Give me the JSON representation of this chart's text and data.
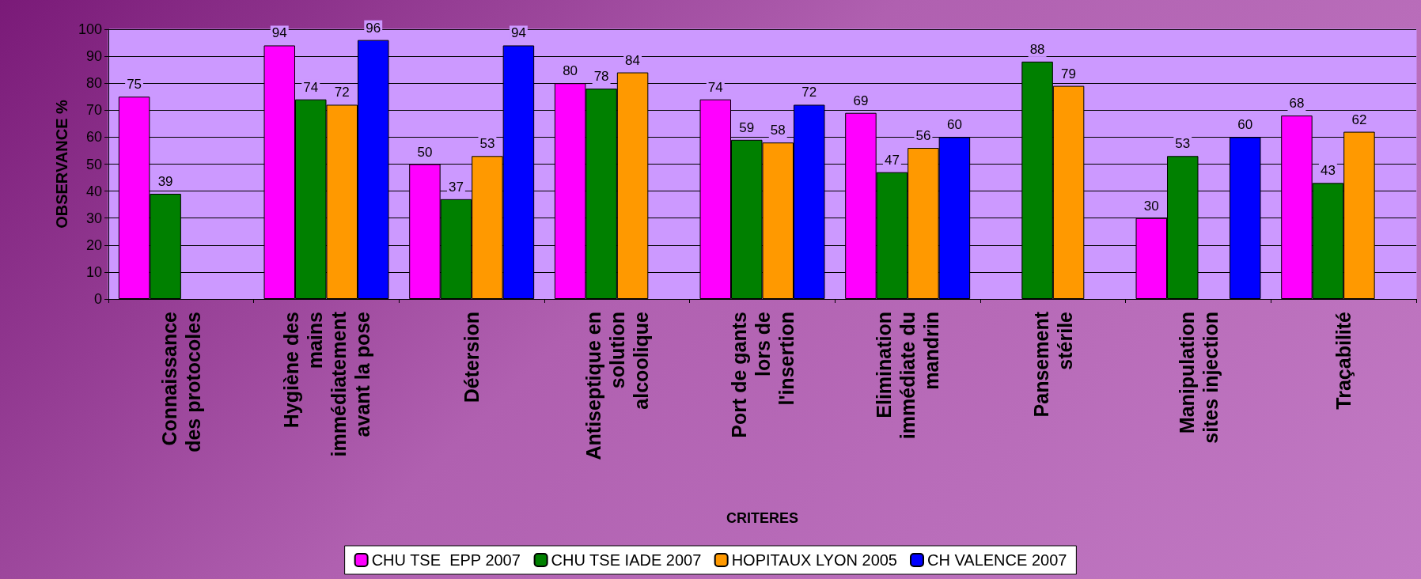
{
  "chart_data": {
    "type": "bar",
    "xlabel": "CRITERES",
    "ylabel": "OBSERVANCE %",
    "categories": [
      "Connaissance\ndes protocoles",
      "Hygiène des\nmains\nimmédiatement\navant la pose",
      "Détersion",
      "Antiseptique en\nsolution\nalcoolique",
      "Port de gants\nlors de\nl'insertion",
      "Elimination\nimmédiate du\nmandrin",
      "Pansement\nstérile",
      "Manipulation\nsites injection",
      "Traçabilité"
    ],
    "series": [
      {
        "name": "CHU TSE  EPP 2007",
        "color": "#ff00ff",
        "values": [
          75,
          94,
          50,
          80,
          74,
          69,
          null,
          30,
          68
        ]
      },
      {
        "name": "CHU TSE IADE 2007",
        "color": "#008000",
        "values": [
          39,
          74,
          37,
          78,
          59,
          47,
          88,
          53,
          43
        ]
      },
      {
        "name": "HOPITAUX LYON 2005",
        "color": "#ff9900",
        "values": [
          null,
          72,
          53,
          84,
          58,
          56,
          79,
          null,
          62
        ]
      },
      {
        "name": "CH VALENCE 2007",
        "color": "#0000ff",
        "values": [
          null,
          96,
          94,
          null,
          72,
          60,
          null,
          60,
          null
        ]
      }
    ],
    "ylim": [
      0,
      100
    ],
    "yticks": [
      0,
      10,
      20,
      30,
      40,
      50,
      60,
      70,
      80,
      90,
      100
    ],
    "grid": "y",
    "legend": "bottom",
    "data_labels": true
  }
}
